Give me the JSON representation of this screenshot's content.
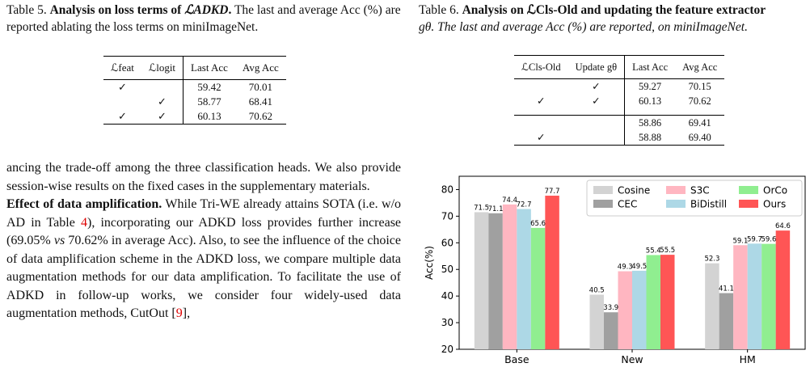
{
  "table5": {
    "caption_prefix": "Table 5.",
    "caption_bold": "Analysis on loss terms of",
    "caption_loss": "ℒADKD",
    "caption_rest": "The last and average Acc (%) are reported ablating the loss terms on miniImageNet.",
    "headers": [
      "ℒfeat",
      "ℒlogit",
      "Last Acc",
      "Avg Acc"
    ],
    "rows": [
      [
        "✓",
        "",
        "59.42",
        "70.01"
      ],
      [
        "",
        "✓",
        "58.77",
        "68.41"
      ],
      [
        "✓",
        "✓",
        "60.13",
        "70.62"
      ]
    ]
  },
  "table6": {
    "caption_prefix": "Table 6.",
    "caption_bold": "Analysis on ℒCls-Old and updating the feature extractor",
    "caption_rest": "gθ. The last and average Acc (%) are reported, on miniImageNet.",
    "headers": [
      "ℒCls-Old",
      "Update gθ",
      "Last Acc",
      "Avg Acc"
    ],
    "rows": [
      [
        "",
        "✓",
        "59.27",
        "70.15"
      ],
      [
        "✓",
        "✓",
        "60.13",
        "70.62"
      ],
      [
        "",
        "",
        "58.86",
        "69.41"
      ],
      [
        "✓",
        "",
        "58.88",
        "69.40"
      ]
    ]
  },
  "paragraph1": "ancing the trade-off among the three classification heads. We also provide session-wise results on the fixed cases in the supplementary materials.",
  "paragraph2": {
    "heading": "Effect of data amplification.",
    "text_a": "While Tri-WE already attains SOTA (i.e. w/o AD in Table",
    "ref_table": "4",
    "text_b": "), incorporating our ADKD loss provides further increase (69.05%",
    "vs": "vs",
    "text_c": "70.62% in average Acc). Also, to see the influence of the choice of data amplification scheme in the ADKD loss, we compare multiple data augmentation methods for our data amplification. To facilitate the use of ADKD in follow-up works, we consider four widely-used data augmentation methods, CutOut [",
    "ref_cutout": "9",
    "text_d": "],"
  },
  "chart_data": {
    "type": "bar",
    "categories": [
      "Base",
      "New",
      "HM"
    ],
    "ylabel": "Acc(%)",
    "ylim": [
      20,
      85
    ],
    "yticks": [
      20,
      30,
      40,
      50,
      60,
      70,
      80
    ],
    "legend_position": "top-right",
    "series": [
      {
        "name": "Cosine",
        "color": "#d3d3d3",
        "values": [
          71.5,
          40.5,
          52.3
        ]
      },
      {
        "name": "CEC",
        "color": "#a0a0a0",
        "values": [
          71.1,
          33.9,
          41.1
        ]
      },
      {
        "name": "S3C",
        "color": "#ffb6c1",
        "values": [
          74.4,
          49.3,
          59.1
        ]
      },
      {
        "name": "BiDistill",
        "color": "#add8e6",
        "values": [
          72.7,
          49.5,
          59.7
        ]
      },
      {
        "name": "OrCo",
        "color": "#90ee90",
        "values": [
          65.6,
          55.4,
          59.6
        ]
      },
      {
        "name": "Ours",
        "color": "#ff5555",
        "values": [
          77.7,
          55.5,
          64.6
        ]
      }
    ]
  }
}
